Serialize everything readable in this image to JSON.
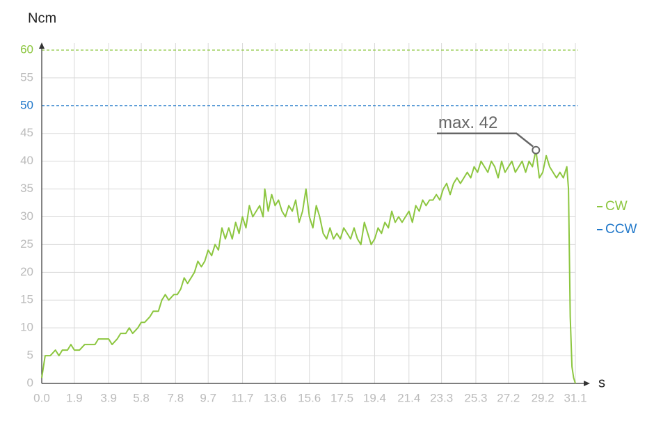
{
  "chart_data": {
    "type": "line",
    "y_axis_label": "Ncm",
    "x_axis_label": "s",
    "xlim": [
      0,
      31.1
    ],
    "ylim": [
      0,
      60
    ],
    "xticks": [
      {
        "value": 0,
        "label": "0.0"
      },
      1.9,
      3.9,
      5.8,
      7.8,
      9.7,
      11.7,
      13.6,
      15.6,
      17.5,
      19.4,
      21.4,
      23.3,
      25.3,
      27.2,
      29.2,
      31.1
    ],
    "yticks": [
      0,
      5,
      10,
      15,
      20,
      25,
      30,
      35,
      40,
      45,
      50,
      55,
      60
    ],
    "grid": true,
    "x": [
      0,
      0.2,
      0.5,
      0.8,
      1.0,
      1.2,
      1.5,
      1.7,
      1.9,
      2.2,
      2.5,
      2.8,
      3.1,
      3.3,
      3.6,
      3.9,
      4.1,
      4.4,
      4.6,
      4.9,
      5.1,
      5.3,
      5.6,
      5.8,
      6.0,
      6.3,
      6.5,
      6.8,
      7.0,
      7.2,
      7.4,
      7.7,
      7.9,
      8.1,
      8.3,
      8.5,
      8.7,
      8.9,
      9.1,
      9.3,
      9.5,
      9.7,
      9.9,
      10.1,
      10.3,
      10.5,
      10.7,
      10.9,
      11.1,
      11.3,
      11.5,
      11.7,
      11.9,
      12.1,
      12.3,
      12.5,
      12.7,
      12.9,
      13.0,
      13.2,
      13.4,
      13.6,
      13.8,
      14.0,
      14.2,
      14.4,
      14.6,
      14.8,
      15.0,
      15.2,
      15.4,
      15.6,
      15.8,
      16.0,
      16.2,
      16.4,
      16.6,
      16.8,
      17.0,
      17.2,
      17.4,
      17.6,
      17.8,
      18.0,
      18.2,
      18.4,
      18.6,
      18.8,
      19.0,
      19.2,
      19.4,
      19.6,
      19.8,
      20.0,
      20.2,
      20.4,
      20.6,
      20.8,
      21.0,
      21.2,
      21.4,
      21.6,
      21.8,
      22.0,
      22.2,
      22.4,
      22.6,
      22.8,
      23.0,
      23.2,
      23.4,
      23.6,
      23.8,
      24.0,
      24.2,
      24.4,
      24.6,
      24.8,
      25.0,
      25.2,
      25.4,
      25.6,
      25.8,
      26.0,
      26.2,
      26.4,
      26.6,
      26.8,
      27.0,
      27.2,
      27.4,
      27.6,
      27.8,
      28.0,
      28.2,
      28.4,
      28.6,
      28.8,
      29.0,
      29.2,
      29.4,
      29.6,
      29.8,
      30.0,
      30.2,
      30.4,
      30.6,
      30.7,
      30.8,
      30.9,
      31.0,
      31.1
    ],
    "series": [
      {
        "name": "CW",
        "color": "#8cc63f",
        "values": [
          1,
          5,
          5,
          6,
          5,
          6,
          6,
          7,
          6,
          6,
          7,
          7,
          7,
          8,
          8,
          8,
          7,
          8,
          9,
          9,
          10,
          9,
          10,
          11,
          11,
          12,
          13,
          13,
          15,
          16,
          15,
          16,
          16,
          17,
          19,
          18,
          19,
          20,
          22,
          21,
          22,
          24,
          23,
          25,
          24,
          28,
          26,
          28,
          26,
          29,
          27,
          30,
          28,
          32,
          30,
          31,
          32,
          30,
          35,
          31,
          34,
          32,
          33,
          31,
          30,
          32,
          31,
          33,
          29,
          31,
          35,
          30,
          28,
          32,
          30,
          27,
          26,
          28,
          26,
          27,
          26,
          28,
          27,
          26,
          28,
          26,
          25,
          29,
          27,
          25,
          26,
          28,
          27,
          29,
          28,
          31,
          29,
          30,
          29,
          30,
          31,
          29,
          32,
          31,
          33,
          32,
          33,
          33,
          34,
          33,
          35,
          36,
          34,
          36,
          37,
          36,
          37,
          38,
          37,
          39,
          38,
          40,
          39,
          38,
          40,
          39,
          37,
          40,
          38,
          39,
          40,
          38,
          39,
          40,
          38,
          40,
          39,
          42,
          37,
          38,
          41,
          39,
          38,
          37,
          38,
          37,
          39,
          35,
          12,
          3,
          1,
          0
        ]
      }
    ],
    "reference_lines": [
      {
        "name": "CW",
        "value": 60,
        "color": "#8cc63f"
      },
      {
        "name": "CCW",
        "value": 50,
        "color": "#1f77c9"
      }
    ],
    "annotation": {
      "text": "max. 42",
      "x": 28.8,
      "y": 42
    }
  }
}
